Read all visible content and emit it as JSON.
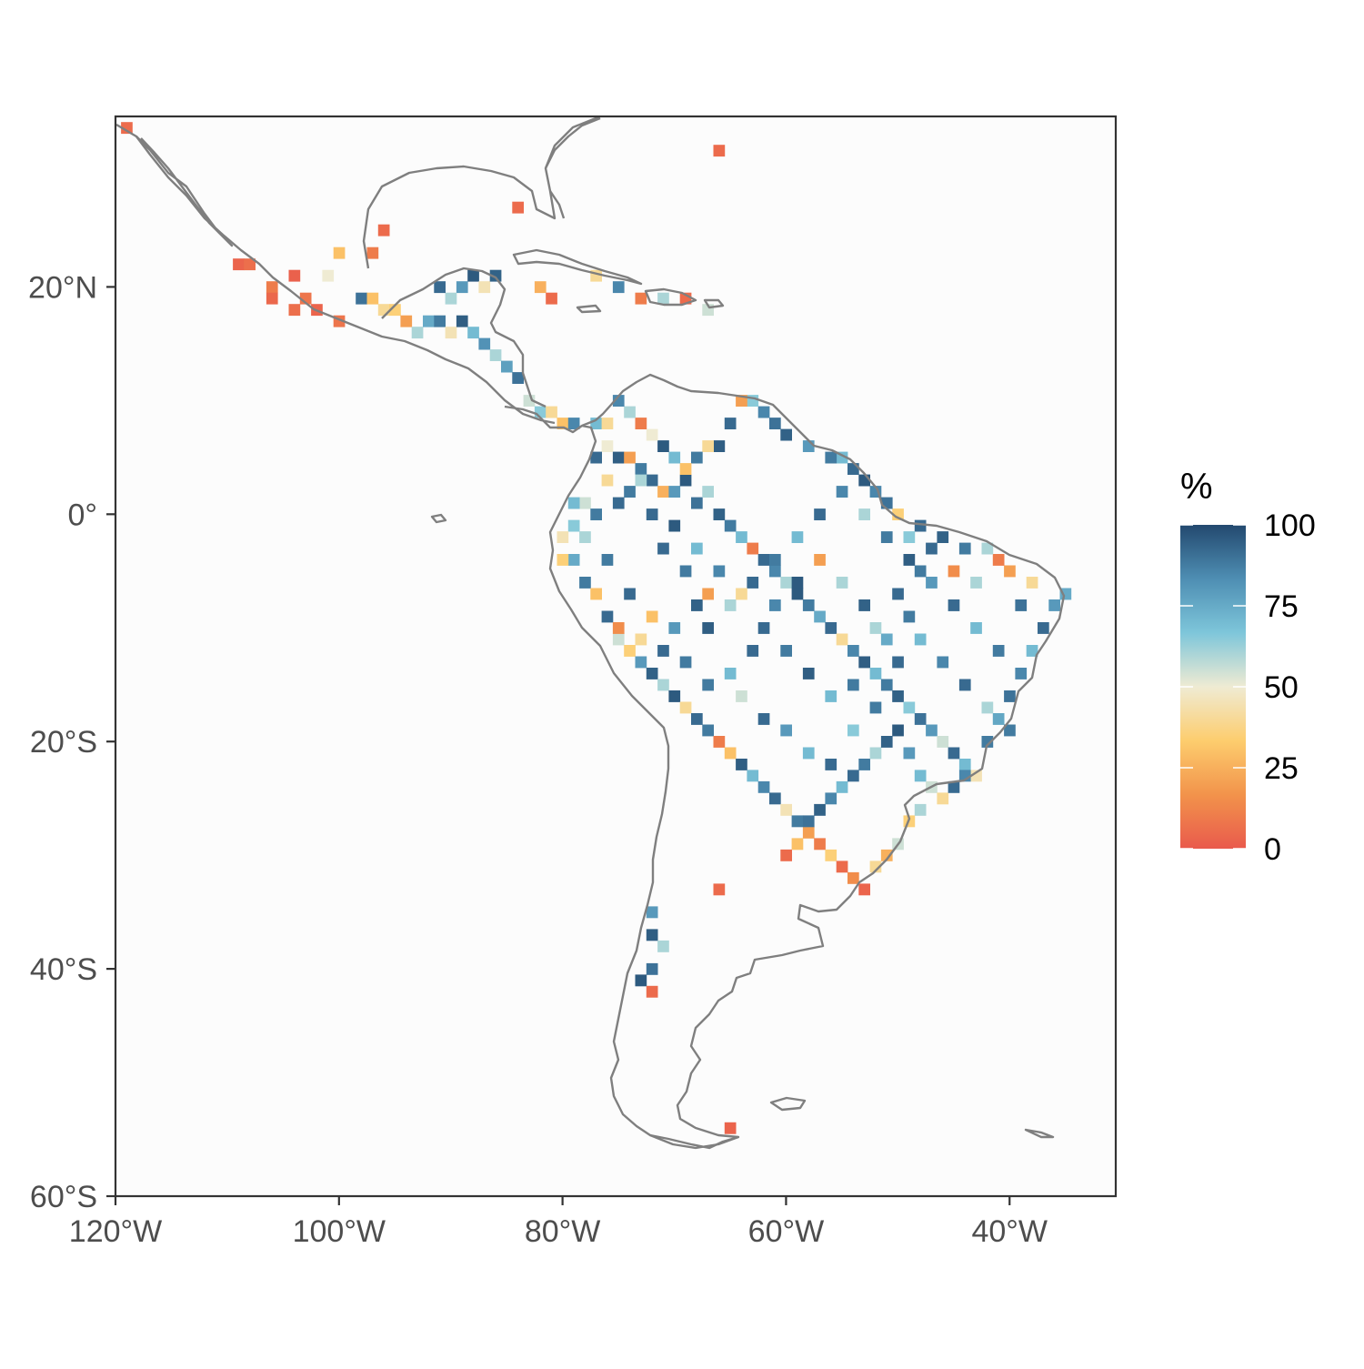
{
  "chart_data": {
    "type": "heatmap",
    "title": "",
    "xlabel": "",
    "ylabel": "",
    "x_ticks": [
      {
        "lon": -120,
        "label": "120°W"
      },
      {
        "lon": -100,
        "label": "100°W"
      },
      {
        "lon": -80,
        "label": "80°W"
      },
      {
        "lon": -60,
        "label": "60°W"
      },
      {
        "lon": -40,
        "label": "40°W"
      }
    ],
    "y_ticks": [
      {
        "lat": 20,
        "label": "20°N"
      },
      {
        "lat": 0,
        "label": "0°"
      },
      {
        "lat": -20,
        "label": "20°S"
      },
      {
        "lat": -40,
        "label": "40°S"
      },
      {
        "lat": -60,
        "label": "60°S"
      }
    ],
    "xlim": [
      -120,
      -30.5
    ],
    "ylim": [
      -60,
      35
    ],
    "grid": false,
    "cell_size_deg": 1,
    "legend": {
      "title": "%",
      "position": "right",
      "range": [
        0,
        100
      ],
      "ticks": [
        {
          "value": 100,
          "label": "100"
        },
        {
          "value": 75,
          "label": "75"
        },
        {
          "value": 50,
          "label": "50"
        },
        {
          "value": 25,
          "label": "25"
        },
        {
          "value": 0,
          "label": "0"
        }
      ],
      "colors": [
        "#E95A4C",
        "#F2934B",
        "#FDCD6E",
        "#EFEBD3",
        "#7EC6DA",
        "#4E8EB3",
        "#23496F"
      ]
    },
    "cells": [
      [
        -119,
        34,
        5
      ],
      [
        -109,
        22,
        3
      ],
      [
        -108,
        22,
        6
      ],
      [
        -106,
        20,
        10
      ],
      [
        -106,
        19,
        4
      ],
      [
        -104,
        21,
        2
      ],
      [
        -103,
        19,
        8
      ],
      [
        -101,
        21,
        50
      ],
      [
        -102,
        18,
        3
      ],
      [
        -104,
        18,
        6
      ],
      [
        -98,
        19,
        90
      ],
      [
        -97,
        19,
        30
      ],
      [
        -96,
        18,
        40
      ],
      [
        -95,
        18,
        35
      ],
      [
        -94,
        17,
        20
      ],
      [
        -93,
        16,
        60
      ],
      [
        -92,
        17,
        75
      ],
      [
        -91,
        17,
        88
      ],
      [
        -90,
        16,
        45
      ],
      [
        -89,
        17,
        95
      ],
      [
        -88,
        16,
        70
      ],
      [
        -87,
        15,
        82
      ],
      [
        -86,
        14,
        60
      ],
      [
        -85,
        13,
        78
      ],
      [
        -84,
        12,
        90
      ],
      [
        -83,
        10,
        55
      ],
      [
        -82,
        9,
        65
      ],
      [
        -81,
        9,
        40
      ],
      [
        -80,
        8,
        30
      ],
      [
        -79,
        8,
        85
      ],
      [
        -77,
        8,
        70
      ],
      [
        -76,
        6,
        50
      ],
      [
        -75,
        5,
        95
      ],
      [
        -74,
        5,
        20
      ],
      [
        -73,
        4,
        88
      ],
      [
        -72,
        3,
        92
      ],
      [
        -71,
        2,
        25
      ],
      [
        -70,
        2,
        80
      ],
      [
        -69,
        3,
        96
      ],
      [
        -68,
        1,
        90
      ],
      [
        -67,
        2,
        60
      ],
      [
        -66,
        0,
        94
      ],
      [
        -65,
        -1,
        88
      ],
      [
        -64,
        -2,
        70
      ],
      [
        -63,
        -3,
        10
      ],
      [
        -62,
        -4,
        92
      ],
      [
        -61,
        -5,
        85
      ],
      [
        -60,
        -6,
        60
      ],
      [
        -59,
        -7,
        96
      ],
      [
        -58,
        -8,
        88
      ],
      [
        -57,
        -9,
        75
      ],
      [
        -56,
        -10,
        92
      ],
      [
        -55,
        -11,
        40
      ],
      [
        -54,
        -12,
        85
      ],
      [
        -53,
        -13,
        95
      ],
      [
        -52,
        -14,
        70
      ],
      [
        -51,
        -15,
        88
      ],
      [
        -50,
        -16,
        94
      ],
      [
        -49,
        -17,
        65
      ],
      [
        -48,
        -18,
        90
      ],
      [
        -47,
        -19,
        80
      ],
      [
        -46,
        -20,
        55
      ],
      [
        -45,
        -21,
        92
      ],
      [
        -44,
        -22,
        70
      ],
      [
        -43,
        -23,
        45
      ],
      [
        -42,
        -20,
        88
      ],
      [
        -41,
        -18,
        76
      ],
      [
        -40,
        -16,
        90
      ],
      [
        -39,
        -14,
        85
      ],
      [
        -38,
        -12,
        70
      ],
      [
        -37,
        -10,
        92
      ],
      [
        -36,
        -8,
        80
      ],
      [
        -35,
        -7,
        75
      ],
      [
        -38,
        -6,
        40
      ],
      [
        -40,
        -5,
        20
      ],
      [
        -41,
        -4,
        10
      ],
      [
        -42,
        -3,
        60
      ],
      [
        -44,
        -3,
        88
      ],
      [
        -46,
        -2,
        94
      ],
      [
        -48,
        -1,
        92
      ],
      [
        -49,
        -2,
        65
      ],
      [
        -50,
        0,
        35
      ],
      [
        -51,
        1,
        90
      ],
      [
        -52,
        2,
        85
      ],
      [
        -53,
        3,
        96
      ],
      [
        -54,
        4,
        92
      ],
      [
        -55,
        5,
        70
      ],
      [
        -56,
        5,
        88
      ],
      [
        -58,
        6,
        80
      ],
      [
        -60,
        7,
        94
      ],
      [
        -61,
        8,
        90
      ],
      [
        -62,
        9,
        85
      ],
      [
        -63,
        10,
        65
      ],
      [
        -64,
        10,
        20
      ],
      [
        -65,
        8,
        92
      ],
      [
        -66,
        6,
        95
      ],
      [
        -67,
        6,
        40
      ],
      [
        -68,
        5,
        88
      ],
      [
        -69,
        4,
        30
      ],
      [
        -70,
        5,
        70
      ],
      [
        -71,
        6,
        96
      ],
      [
        -72,
        7,
        50
      ],
      [
        -73,
        8,
        10
      ],
      [
        -74,
        9,
        60
      ],
      [
        -75,
        10,
        85
      ],
      [
        -76,
        8,
        40
      ],
      [
        -77,
        5,
        92
      ],
      [
        -78,
        1,
        55
      ],
      [
        -79,
        -1,
        65
      ],
      [
        -80,
        -2,
        45
      ],
      [
        -79,
        -4,
        75
      ],
      [
        -78,
        -6,
        88
      ],
      [
        -77,
        -7,
        30
      ],
      [
        -76,
        -9,
        92
      ],
      [
        -75,
        -11,
        55
      ],
      [
        -74,
        -12,
        35
      ],
      [
        -73,
        -13,
        80
      ],
      [
        -72,
        -14,
        94
      ],
      [
        -71,
        -15,
        60
      ],
      [
        -70,
        -16,
        96
      ],
      [
        -69,
        -17,
        40
      ],
      [
        -68,
        -18,
        92
      ],
      [
        -67,
        -19,
        88
      ],
      [
        -66,
        -20,
        10
      ],
      [
        -65,
        -21,
        30
      ],
      [
        -64,
        -22,
        95
      ],
      [
        -63,
        -23,
        70
      ],
      [
        -62,
        -24,
        85
      ],
      [
        -61,
        -25,
        92
      ],
      [
        -60,
        -26,
        45
      ],
      [
        -59,
        -27,
        88
      ],
      [
        -58,
        -28,
        20
      ],
      [
        -57,
        -29,
        10
      ],
      [
        -56,
        -30,
        35
      ],
      [
        -55,
        -31,
        5
      ],
      [
        -54,
        -32,
        15
      ],
      [
        -53,
        -33,
        3
      ],
      [
        -52,
        -31,
        40
      ],
      [
        -51,
        -30,
        25
      ],
      [
        -50,
        -29,
        55
      ],
      [
        -49,
        -27,
        35
      ],
      [
        -48,
        -26,
        60
      ],
      [
        -60,
        -30,
        5
      ],
      [
        -59,
        -29,
        30
      ],
      [
        -58,
        -27,
        90
      ],
      [
        -57,
        -26,
        94
      ],
      [
        -56,
        -25,
        85
      ],
      [
        -55,
        -24,
        70
      ],
      [
        -54,
        -23,
        92
      ],
      [
        -53,
        -22,
        88
      ],
      [
        -52,
        -21,
        60
      ],
      [
        -51,
        -20,
        94
      ],
      [
        -50,
        -19,
        96
      ],
      [
        -49,
        -21,
        80
      ],
      [
        -48,
        -23,
        70
      ],
      [
        -47,
        -24,
        55
      ],
      [
        -46,
        -25,
        40
      ],
      [
        -45,
        -24,
        92
      ],
      [
        -44,
        -23,
        85
      ],
      [
        -66,
        -33,
        5
      ],
      [
        -72,
        -35,
        80
      ],
      [
        -72,
        -37,
        95
      ],
      [
        -71,
        -38,
        60
      ],
      [
        -72,
        -40,
        90
      ],
      [
        -73,
        -41,
        96
      ],
      [
        -72,
        -42,
        5
      ],
      [
        -65,
        -54,
        3
      ],
      [
        -75,
        -10,
        15
      ],
      [
        -73,
        -11,
        40
      ],
      [
        -71,
        -12,
        92
      ],
      [
        -69,
        -13,
        88
      ],
      [
        -67,
        -10,
        95
      ],
      [
        -65,
        -8,
        60
      ],
      [
        -63,
        -6,
        92
      ],
      [
        -61,
        -4,
        88
      ],
      [
        -59,
        -2,
        70
      ],
      [
        -57,
        0,
        92
      ],
      [
        -55,
        2,
        85
      ],
      [
        -53,
        0,
        60
      ],
      [
        -51,
        -2,
        88
      ],
      [
        -49,
        -4,
        95
      ],
      [
        -47,
        -6,
        80
      ],
      [
        -45,
        -8,
        92
      ],
      [
        -43,
        -10,
        70
      ],
      [
        -41,
        -12,
        88
      ],
      [
        -39,
        -8,
        90
      ],
      [
        -43,
        -6,
        60
      ],
      [
        -45,
        -5,
        15
      ],
      [
        -47,
        -3,
        92
      ],
      [
        -49,
        -9,
        88
      ],
      [
        -51,
        -11,
        75
      ],
      [
        -53,
        -8,
        94
      ],
      [
        -55,
        -6,
        60
      ],
      [
        -57,
        -4,
        20
      ],
      [
        -59,
        -6,
        96
      ],
      [
        -61,
        -8,
        85
      ],
      [
        -63,
        -12,
        92
      ],
      [
        -65,
        -14,
        70
      ],
      [
        -67,
        -15,
        88
      ],
      [
        -64,
        -16,
        55
      ],
      [
        -62,
        -18,
        92
      ],
      [
        -60,
        -19,
        80
      ],
      [
        -58,
        -21,
        70
      ],
      [
        -56,
        -22,
        92
      ],
      [
        -54,
        -19,
        65
      ],
      [
        -52,
        -17,
        88
      ],
      [
        -50,
        -13,
        92
      ],
      [
        -48,
        -11,
        70
      ],
      [
        -46,
        -13,
        85
      ],
      [
        -44,
        -15,
        92
      ],
      [
        -42,
        -17,
        60
      ],
      [
        -40,
        -19,
        88
      ],
      [
        -76,
        3,
        40
      ],
      [
        -74,
        2,
        88
      ],
      [
        -72,
        0,
        92
      ],
      [
        -70,
        -1,
        96
      ],
      [
        -68,
        -3,
        70
      ],
      [
        -66,
        -5,
        85
      ],
      [
        -64,
        -7,
        40
      ],
      [
        -62,
        -10,
        92
      ],
      [
        -60,
        -12,
        88
      ],
      [
        -58,
        -14,
        95
      ],
      [
        -56,
        -16,
        70
      ],
      [
        -54,
        -15,
        88
      ],
      [
        -52,
        -10,
        60
      ],
      [
        -50,
        -7,
        92
      ],
      [
        -48,
        -5,
        88
      ],
      [
        -68,
        -8,
        94
      ],
      [
        -70,
        -10,
        80
      ],
      [
        -72,
        -9,
        30
      ],
      [
        -74,
        -7,
        92
      ],
      [
        -76,
        -4,
        88
      ],
      [
        -78,
        -2,
        60
      ],
      [
        -80,
        -4,
        35
      ],
      [
        -79,
        1,
        70
      ],
      [
        -77,
        0,
        88
      ],
      [
        -75,
        1,
        92
      ],
      [
        -73,
        3,
        60
      ],
      [
        -71,
        -3,
        92
      ],
      [
        -69,
        -5,
        88
      ],
      [
        -67,
        -7,
        20
      ],
      [
        -88,
        21,
        96
      ],
      [
        -89,
        20,
        80
      ],
      [
        -90,
        19,
        60
      ],
      [
        -91,
        20,
        92
      ],
      [
        -87,
        20,
        45
      ],
      [
        -86,
        21,
        94
      ],
      [
        -96,
        25,
        5
      ],
      [
        -97,
        23,
        10
      ],
      [
        -100,
        23,
        30
      ],
      [
        -100,
        17,
        8
      ],
      [
        -77,
        21,
        40
      ],
      [
        -75,
        20,
        85
      ],
      [
        -73,
        19,
        10
      ],
      [
        -71,
        19,
        60
      ],
      [
        -69,
        19,
        5
      ],
      [
        -67,
        18,
        55
      ],
      [
        -82,
        20,
        25
      ],
      [
        -81,
        19,
        5
      ],
      [
        -84,
        27,
        5
      ],
      [
        -66,
        32,
        5
      ]
    ]
  }
}
